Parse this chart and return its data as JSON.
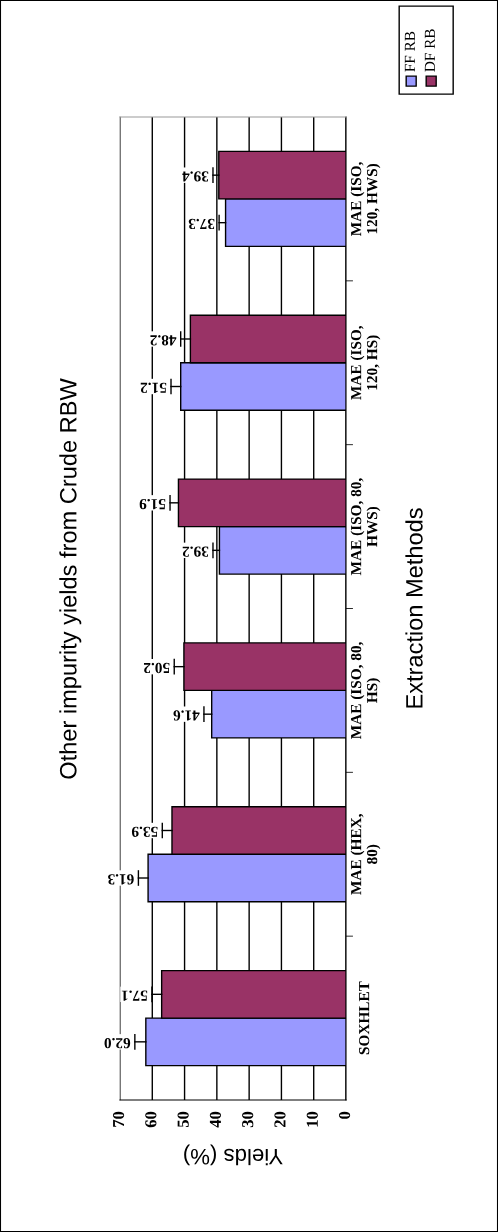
{
  "chart_data": {
    "type": "bar",
    "orientation": "horizontal",
    "title": "Other impurity yields from Crude RBW",
    "xlabel": "Yields (%)",
    "ylabel": "Extraction Methods",
    "categories": [
      "MAE (ISO,\n120, HWS)",
      "MAE (ISO,\n120, HS)",
      "MAE (ISO, 80,\nHWS)",
      "MAE (ISO, 80,\nHS)",
      "MAE (HEX,\n80)",
      "SOXHLET"
    ],
    "series": [
      {
        "name": "FF RB",
        "color": "#9999ff",
        "values": [
          37.3,
          51.2,
          39.2,
          41.6,
          61.3,
          62.0
        ],
        "value_labels": [
          "37.3",
          "51.2",
          "39.2",
          "41.6",
          "61.3",
          "62.0"
        ],
        "errors": [
          [
            37.3,
            39.3
          ],
          [
            51.2,
            54.2
          ],
          [
            39.2,
            41.2
          ],
          [
            41.6,
            44.0
          ],
          [
            61.3,
            64.3
          ],
          [
            62.0,
            65.4
          ]
        ]
      },
      {
        "name": "DF RB",
        "color": "#993366",
        "values": [
          39.4,
          48.2,
          51.9,
          50.2,
          53.9,
          57.1
        ],
        "value_labels": [
          "39.4",
          "48.2",
          "51.9",
          "50.2",
          "53.9",
          "57.1"
        ],
        "errors": [
          [
            39.4,
            41.2
          ],
          [
            48.2,
            51.2
          ],
          [
            51.9,
            54.5
          ],
          [
            50.2,
            53.2
          ],
          [
            53.9,
            56.9
          ],
          [
            57.1,
            60.1
          ]
        ]
      }
    ],
    "xlim": [
      70,
      0
    ],
    "xticks": [
      0,
      10,
      20,
      30,
      40,
      50,
      60,
      70
    ],
    "grid": "x",
    "legend": "top right"
  }
}
